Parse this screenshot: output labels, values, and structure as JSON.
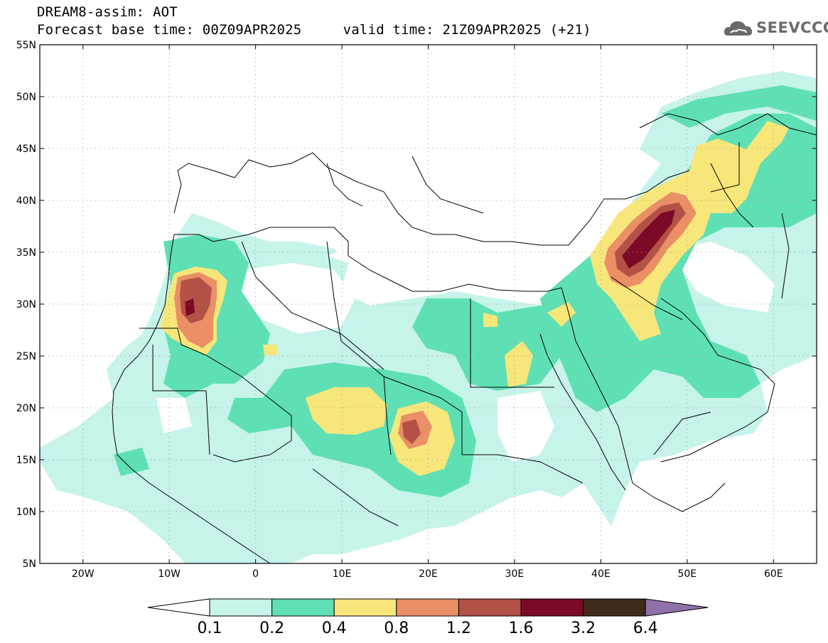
{
  "header": {
    "title_line1": "DREAM8-assim: AOT",
    "title_line2_left": "Forecast base time: 00Z09APR2025",
    "title_line2_right": "valid time: 21Z09APR2025 (+21)",
    "logo_text": "SEEVCCC",
    "logo_icon": "cloud-icon"
  },
  "map": {
    "lon_range": [
      -25,
      65
    ],
    "lat_range": [
      5,
      55
    ],
    "lon_ticks": [
      {
        "value": -20,
        "label": "20W"
      },
      {
        "value": -10,
        "label": "10W"
      },
      {
        "value": 0,
        "label": "0"
      },
      {
        "value": 10,
        "label": "10E"
      },
      {
        "value": 20,
        "label": "20E"
      },
      {
        "value": 30,
        "label": "30E"
      },
      {
        "value": 40,
        "label": "40E"
      },
      {
        "value": 50,
        "label": "50E"
      },
      {
        "value": 60,
        "label": "60E"
      }
    ],
    "lat_ticks": [
      {
        "value": 5,
        "label": "5N"
      },
      {
        "value": 10,
        "label": "10N"
      },
      {
        "value": 15,
        "label": "15N"
      },
      {
        "value": 20,
        "label": "20N"
      },
      {
        "value": 25,
        "label": "25N"
      },
      {
        "value": 30,
        "label": "30N"
      },
      {
        "value": 35,
        "label": "35N"
      },
      {
        "value": 40,
        "label": "40N"
      },
      {
        "value": 45,
        "label": "45N"
      },
      {
        "value": 50,
        "label": "50N"
      },
      {
        "value": 55,
        "label": "55N"
      }
    ],
    "grid": "dotted"
  },
  "colorbar": {
    "labels": [
      "0.1",
      "0.2",
      "0.4",
      "0.8",
      "1.2",
      "1.6",
      "3.2",
      "6.4"
    ],
    "colors": [
      "#ffffff",
      "#c6f3ea",
      "#5fe0b4",
      "#f7e67a",
      "#ea8f66",
      "#b45146",
      "#7a0a26",
      "#402a1a",
      "#8f70a8"
    ]
  }
}
